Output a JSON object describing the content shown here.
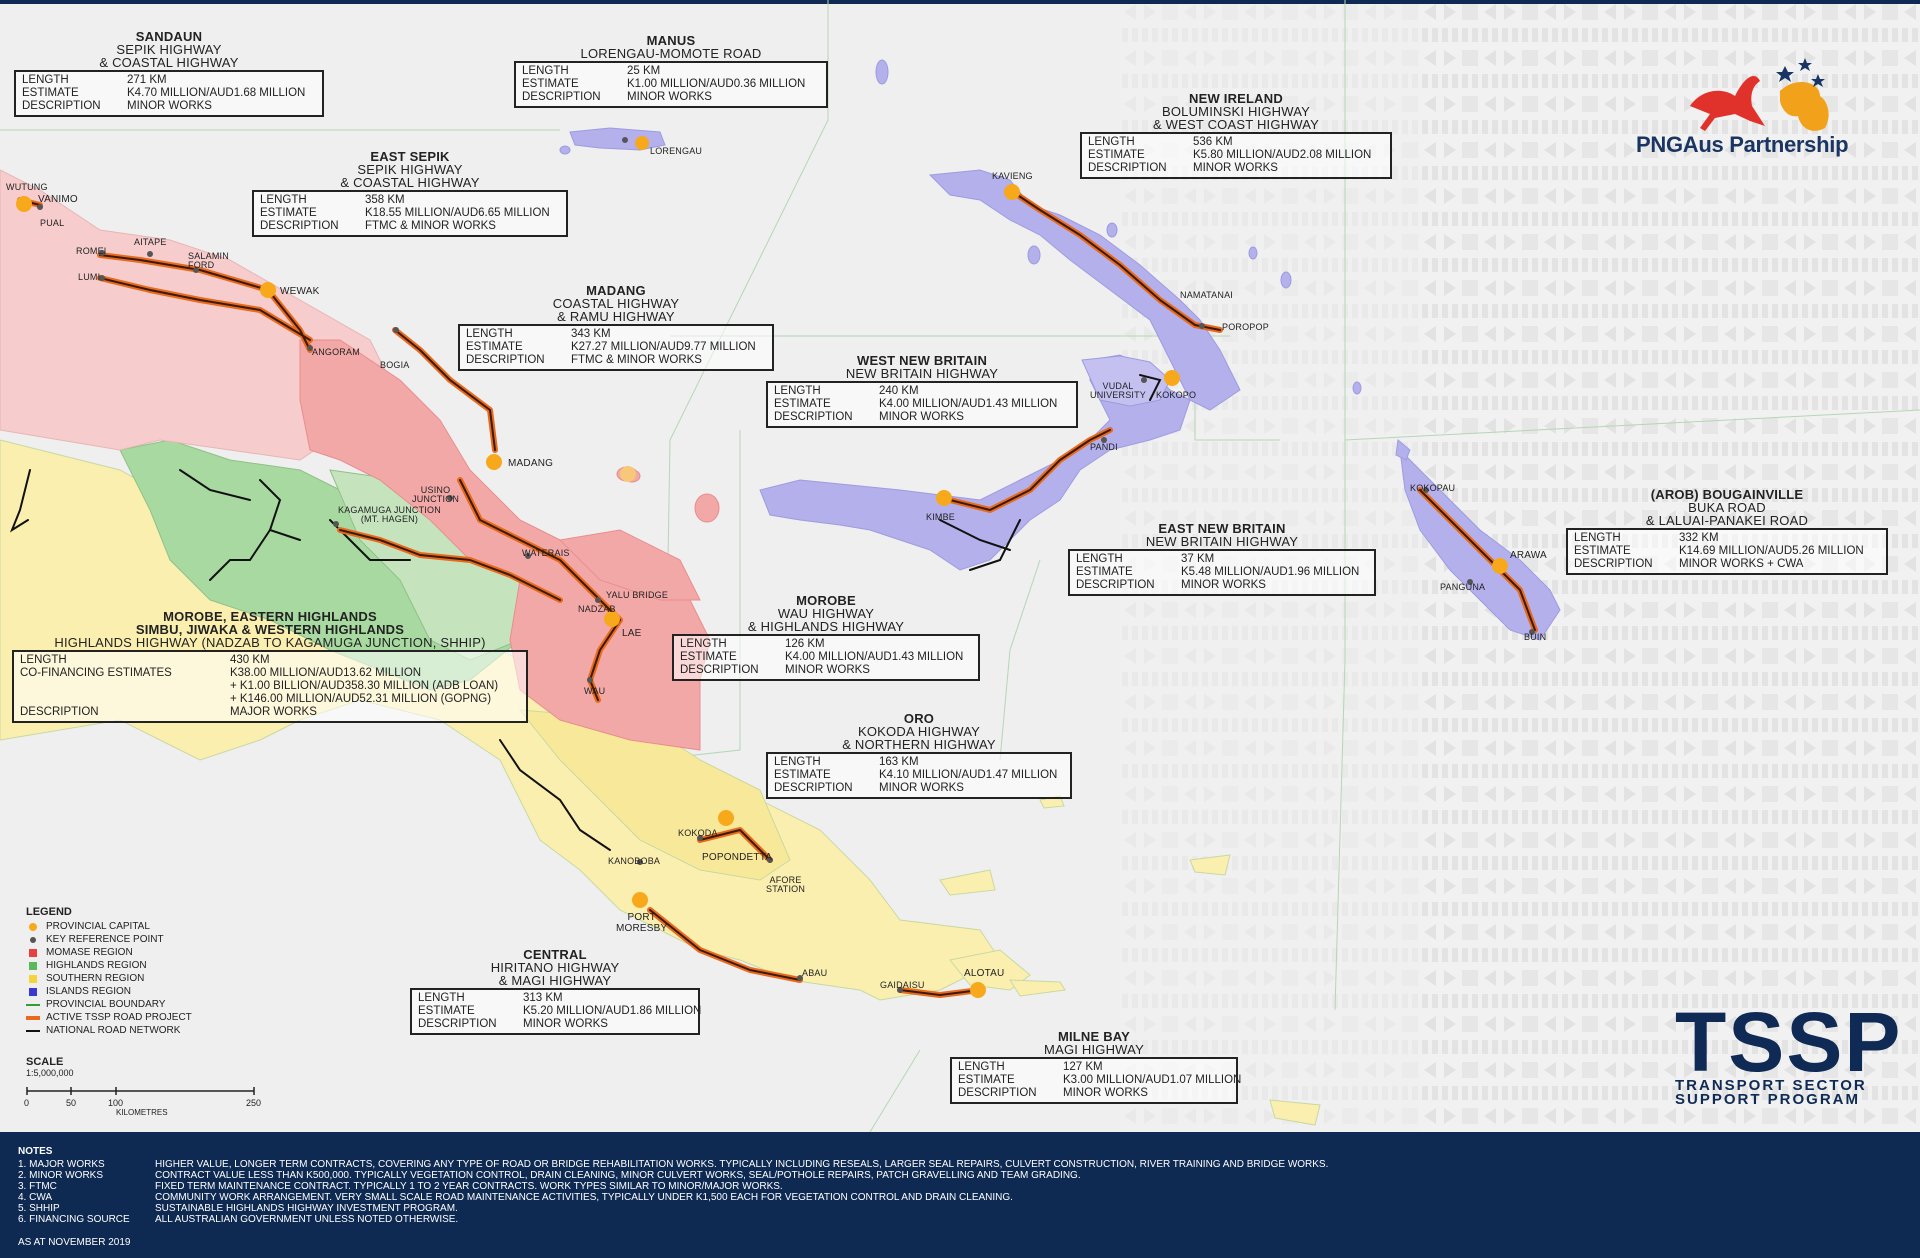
{
  "colors": {
    "momase": "#f3a8a8",
    "momase_light": "#f6cccc",
    "highlands": "#a8d9a0",
    "southern": "#fbefb0",
    "islands": "#b3b0ec",
    "road_project": "#e86a1e",
    "national_road": "#111111",
    "provincial_capital": "#f7a81b",
    "key_point": "#555555",
    "notes_bg": "#0e2a52",
    "brand": "#1a3563"
  },
  "logo": {
    "brand_text": "PNGAus Partnership",
    "icon": "kangaroo-bird-of-paradise-logo"
  },
  "tssp": {
    "acronym": "TSSP",
    "line1": "TRANSPORT SECTOR",
    "line2": "SUPPORT PROGRAM"
  },
  "projects": {
    "sandaun": {
      "title": "SANDAUN",
      "sub1": "SEPIK HIGHWAY",
      "sub2": "& COASTAL HIGHWAY",
      "rows": [
        {
          "k": "LENGTH",
          "v": "271 KM"
        },
        {
          "k": "ESTIMATE",
          "v": "K4.70 MILLION/AUD1.68 MILLION"
        },
        {
          "k": "DESCRIPTION",
          "v": "MINOR WORKS"
        }
      ]
    },
    "manus": {
      "title": "MANUS",
      "sub1": "LORENGAU-MOMOTE ROAD",
      "sub2": "",
      "rows": [
        {
          "k": "LENGTH",
          "v": "25 KM"
        },
        {
          "k": "ESTIMATE",
          "v": "K1.00 MILLION/AUD0.36 MILLION"
        },
        {
          "k": "DESCRIPTION",
          "v": "MINOR WORKS"
        }
      ]
    },
    "new_ireland": {
      "title": "NEW IRELAND",
      "sub1": "BOLUMINSKI HIGHWAY",
      "sub2": "& WEST COAST HIGHWAY",
      "rows": [
        {
          "k": "LENGTH",
          "v": "536 KM"
        },
        {
          "k": "ESTIMATE",
          "v": "K5.80 MILLION/AUD2.08 MILLION"
        },
        {
          "k": "DESCRIPTION",
          "v": "MINOR WORKS"
        }
      ]
    },
    "east_sepik": {
      "title": "EAST SEPIK",
      "sub1": "SEPIK HIGHWAY",
      "sub2": "& COASTAL HIGHWAY",
      "rows": [
        {
          "k": "LENGTH",
          "v": "358 KM"
        },
        {
          "k": "ESTIMATE",
          "v": "K18.55 MILLION/AUD6.65 MILLION"
        },
        {
          "k": "DESCRIPTION",
          "v": "FTMC & MINOR WORKS"
        }
      ]
    },
    "madang": {
      "title": "MADANG",
      "sub1": "COASTAL HIGHWAY",
      "sub2": "& RAMU HIGHWAY",
      "rows": [
        {
          "k": "LENGTH",
          "v": "343 KM"
        },
        {
          "k": "ESTIMATE",
          "v": "K27.27 MILLION/AUD9.77 MILLION"
        },
        {
          "k": "DESCRIPTION",
          "v": "FTMC & MINOR WORKS"
        }
      ]
    },
    "west_new_britain": {
      "title": "WEST NEW BRITAIN",
      "sub1": "NEW BRITAIN HIGHWAY",
      "sub2": "",
      "rows": [
        {
          "k": "LENGTH",
          "v": "240 KM"
        },
        {
          "k": "ESTIMATE",
          "v": "K4.00 MILLION/AUD1.43 MILLION"
        },
        {
          "k": "DESCRIPTION",
          "v": "MINOR WORKS"
        }
      ]
    },
    "bougainville": {
      "title": "(AROB) BOUGAINVILLE",
      "sub1": "BUKA ROAD",
      "sub2": "& LALUAI-PANAKEI ROAD",
      "rows": [
        {
          "k": "LENGTH",
          "v": "332 KM"
        },
        {
          "k": "ESTIMATE",
          "v": "K14.69 MILLION/AUD5.26 MILLION"
        },
        {
          "k": "DESCRIPTION",
          "v": "MINOR WORKS + CWA"
        }
      ]
    },
    "east_new_britain": {
      "title": "EAST NEW BRITAIN",
      "sub1": "NEW BRITAIN HIGHWAY",
      "sub2": "",
      "rows": [
        {
          "k": "LENGTH",
          "v": "37 KM"
        },
        {
          "k": "ESTIMATE",
          "v": "K5.48 MILLION/AUD1.96 MILLION"
        },
        {
          "k": "DESCRIPTION",
          "v": "MINOR WORKS"
        }
      ]
    },
    "highlands": {
      "title": "MOROBE, EASTERN HIGHLANDS",
      "sub0": "SIMBU, JIWAKA & WESTERN HIGHLANDS",
      "sub1": "HIGHLANDS HIGHWAY (NADZAB TO KAGAMUGA JUNCTION, SHHIP)",
      "sub2": "",
      "rows": [
        {
          "k": "LENGTH",
          "v": "430 KM"
        },
        {
          "k": "CO-FINANCING ESTIMATES",
          "v": "K38.00 MILLION/AUD13.62 MILLION\n+ K1.00 BILLION/AUD358.30 MILLION (ADB LOAN)\n+ K146.00 MILLION/AUD52.31 MILLION (GOPNG)"
        },
        {
          "k": "DESCRIPTION",
          "v": "MAJOR WORKS"
        }
      ]
    },
    "morobe": {
      "title": "MOROBE",
      "sub1": "WAU HIGHWAY",
      "sub2": "& HIGHLANDS HIGHWAY",
      "rows": [
        {
          "k": "LENGTH",
          "v": "126 KM"
        },
        {
          "k": "ESTIMATE",
          "v": "K4.00 MILLION/AUD1.43 MILLION"
        },
        {
          "k": "DESCRIPTION",
          "v": "MINOR WORKS"
        }
      ]
    },
    "oro": {
      "title": "ORO",
      "sub1": "KOKODA HIGHWAY",
      "sub2": "& NORTHERN HIGHWAY",
      "rows": [
        {
          "k": "LENGTH",
          "v": "163 KM"
        },
        {
          "k": "ESTIMATE",
          "v": "K4.10 MILLION/AUD1.47 MILLION"
        },
        {
          "k": "DESCRIPTION",
          "v": "MINOR WORKS"
        }
      ]
    },
    "central": {
      "title": "CENTRAL",
      "sub1": "HIRITANO HIGHWAY",
      "sub2": "& MAGI HIGHWAY",
      "rows": [
        {
          "k": "LENGTH",
          "v": "313 KM"
        },
        {
          "k": "ESTIMATE",
          "v": "K5.20 MILLION/AUD1.86 MILLION"
        },
        {
          "k": "DESCRIPTION",
          "v": "MINOR WORKS"
        }
      ]
    },
    "milne_bay": {
      "title": "MILNE BAY",
      "sub1": "MAGI HIGHWAY",
      "sub2": "",
      "rows": [
        {
          "k": "LENGTH",
          "v": "127 KM"
        },
        {
          "k": "ESTIMATE",
          "v": "K3.00 MILLION/AUD1.07 MILLION"
        },
        {
          "k": "DESCRIPTION",
          "v": "MINOR WORKS"
        }
      ]
    }
  },
  "places": {
    "wutung": "WUTUNG",
    "vanimo": "VANIMO",
    "pual": "PUAL",
    "aitape": "AITAPE",
    "romei": "ROMEI",
    "salamin": "SALAMIN\nFORD",
    "lumi": "LUMI",
    "wewak": "WEWAK",
    "angoram": "ANGORAM",
    "lorengau": "LORENGAU",
    "kavieng": "KAVIENG",
    "namatanai": "NAMATANAI",
    "poropop": "POROPOP",
    "bogia": "BOGIA",
    "madang": "MADANG",
    "usino": "USINO\nJUNCTION",
    "kagamuga": "KAGAMUGA JUNCTION\n(MT. HAGEN)",
    "waterais": "WATERAIS",
    "yalu": "YALU BRIDGE",
    "nadzab": "NADZAB",
    "lae": "LAE",
    "wau": "WAU",
    "kimbe": "KIMBE",
    "vudal": "VUDAL\nUNIVERSITY",
    "kokopo": "KOKOPO",
    "pandi": "PANDI",
    "kokopau": "KOKOPAU",
    "arawa": "ARAWA",
    "panguna": "PANGUNA",
    "buin": "BUIN",
    "kokoda": "KOKODA",
    "popondetta": "POPONDETTA",
    "afore": "AFORE\nSTATION",
    "kanoboba": "KANOBOBA",
    "port_moresby": "PORT\nMORESBY",
    "abau": "ABAU",
    "gaidaisu": "GAIDAISU",
    "alotau": "ALOTAU"
  },
  "legend": {
    "title": "LEGEND",
    "items": [
      {
        "label": "PROVINCIAL CAPITAL",
        "icon": "provincial-capital-dot"
      },
      {
        "label": "KEY REFERENCE POINT",
        "icon": "key-point-dot"
      },
      {
        "label": "MOMASE REGION",
        "icon": "momase-square"
      },
      {
        "label": "HIGHLANDS REGION",
        "icon": "highlands-square"
      },
      {
        "label": "SOUTHERN REGION",
        "icon": "southern-square"
      },
      {
        "label": "ISLANDS REGION",
        "icon": "islands-square"
      },
      {
        "label": "PROVINCIAL BOUNDARY",
        "icon": "boundary-line"
      },
      {
        "label": "ACTIVE TSSP ROAD PROJECT",
        "icon": "project-line"
      },
      {
        "label": "NATIONAL ROAD NETWORK",
        "icon": "road-line"
      }
    ]
  },
  "scale": {
    "title": "SCALE",
    "ratio": "1:5,000,000",
    "ticks": [
      "0",
      "50",
      "100",
      "250"
    ],
    "unit": "KILOMETRES"
  },
  "notes": {
    "title": "NOTES",
    "rows": [
      {
        "k": "1. MAJOR WORKS",
        "v": "HIGHER VALUE, LONGER TERM CONTRACTS, COVERING ANY TYPE OF ROAD OR BRIDGE REHABILITATION WORKS.  TYPICALLY INCLUDING RESEALS, LARGER SEAL REPAIRS, CULVERT CONSTRUCTION, RIVER TRAINING AND BRIDGE WORKS."
      },
      {
        "k": "2. MINOR WORKS",
        "v": "CONTRACT VALUE LESS THAN K500,000. TYPICALLY VEGETATION CONTROL, DRAIN CLEANING, MINOR CULVERT WORKS, SEAL/POTHOLE REPAIRS, PATCH GRAVELLING AND TEAM GRADING."
      },
      {
        "k": "3. FTMC",
        "v": "FIXED TERM MAINTENANCE CONTRACT. TYPICALLY 1 TO 2 YEAR CONTRACTS. WORK TYPES SIMILAR TO MINOR/MAJOR WORKS."
      },
      {
        "k": "4. CWA",
        "v": "COMMUNITY WORK ARRANGEMENT. VERY SMALL SCALE ROAD MAINTENANCE ACTIVITIES, TYPICALLY UNDER K1,500 EACH FOR VEGETATION CONTROL  AND DRAIN CLEANING."
      },
      {
        "k": "5. SHHIP",
        "v": "SUSTAINABLE HIGHLANDS HIGHWAY INVESTMENT PROGRAM."
      },
      {
        "k": "6. FINANCING SOURCE",
        "v": "ALL AUSTRALIAN GOVERNMENT UNLESS NOTED OTHERWISE."
      }
    ],
    "as_at": "AS AT NOVEMBER 2019"
  }
}
